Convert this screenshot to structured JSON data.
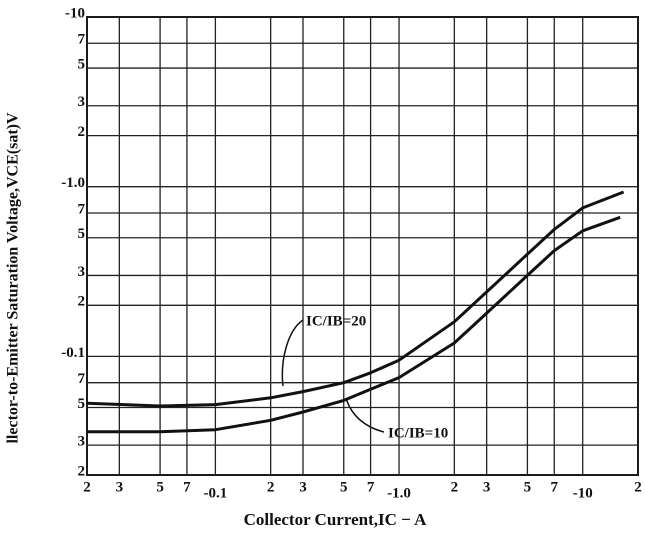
{
  "chart_data": {
    "type": "line",
    "x_label": "Collector Current,IC − A",
    "y_label": "llector-to-Emitter Saturation Voltage,VCE(sat)V",
    "log_x": true,
    "log_y": true,
    "grid": true,
    "xlim": [
      -0.02,
      -20
    ],
    "ylim": [
      -0.02,
      -10
    ],
    "xticks": [
      {
        "value": -0.02,
        "label": "2"
      },
      {
        "value": -0.03,
        "label": "3"
      },
      {
        "value": -0.05,
        "label": "5"
      },
      {
        "value": -0.07,
        "label": "7"
      },
      -0.1,
      {
        "value": -0.2,
        "label": "2"
      },
      {
        "value": -0.3,
        "label": "3"
      },
      {
        "value": -0.5,
        "label": "5"
      },
      {
        "value": -0.7,
        "label": "7"
      },
      {
        "value": -1,
        "label": "-1.0"
      },
      {
        "value": -2,
        "label": "2"
      },
      {
        "value": -3,
        "label": "3"
      },
      {
        "value": -5,
        "label": "5"
      },
      {
        "value": -7,
        "label": "7"
      },
      -10,
      {
        "value": -20,
        "label": "2"
      }
    ],
    "yticks": [
      {
        "value": -0.02,
        "label": "2"
      },
      {
        "value": -0.03,
        "label": "3"
      },
      {
        "value": -0.05,
        "label": "5"
      },
      {
        "value": -0.07,
        "label": "7"
      },
      -0.1,
      {
        "value": -0.2,
        "label": "2"
      },
      {
        "value": -0.3,
        "label": "3"
      },
      {
        "value": -0.5,
        "label": "5"
      },
      {
        "value": -0.7,
        "label": "7"
      },
      {
        "value": -1,
        "label": "-1.0"
      },
      {
        "value": -2,
        "label": "2"
      },
      {
        "value": -3,
        "label": "3"
      },
      {
        "value": -5,
        "label": "5"
      },
      {
        "value": -7,
        "label": "7"
      },
      -10
    ],
    "series": [
      {
        "name": "IC/IB=20",
        "color": "#111111",
        "x": [
          -0.02,
          -0.05,
          -0.1,
          -0.2,
          -0.3,
          -0.5,
          -0.7,
          -1,
          -2,
          -3,
          -5,
          -7,
          -10,
          -16.7
        ],
        "values": [
          -0.053,
          -0.051,
          -0.052,
          -0.057,
          -0.062,
          -0.07,
          -0.08,
          -0.095,
          -0.16,
          -0.24,
          -0.4,
          -0.56,
          -0.75,
          -0.93
        ]
      },
      {
        "name": "IC/IB=10",
        "color": "#111111",
        "x": [
          -0.02,
          -0.05,
          -0.1,
          -0.2,
          -0.3,
          -0.5,
          -0.7,
          -1,
          -2,
          -3,
          -5,
          -7,
          -10,
          -16
        ],
        "values": [
          -0.036,
          -0.036,
          -0.037,
          -0.042,
          -0.047,
          -0.055,
          -0.064,
          -0.075,
          -0.12,
          -0.18,
          -0.3,
          -0.42,
          -0.55,
          -0.66
        ]
      }
    ]
  }
}
